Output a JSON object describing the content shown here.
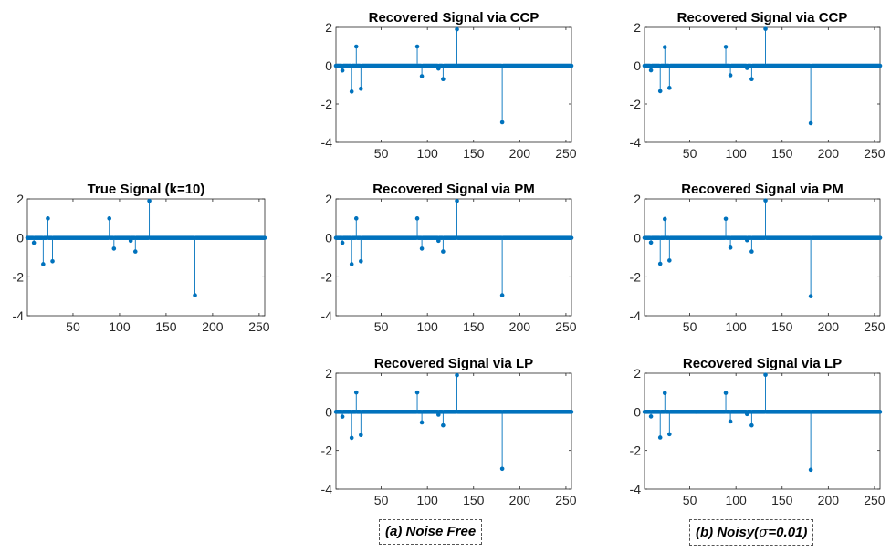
{
  "chart_data": [
    {
      "type": "stem",
      "title": "True Signal (k=10)",
      "xlim": [
        1,
        256
      ],
      "ylim": [
        -4,
        2
      ],
      "xticks": [
        50,
        100,
        150,
        200,
        250
      ],
      "yticks": [
        2,
        0,
        -2,
        -4
      ],
      "n_points": 256,
      "spikes": [
        {
          "x": 8,
          "y": -0.25
        },
        {
          "x": 18,
          "y": -1.35
        },
        {
          "x": 23,
          "y": 1.0
        },
        {
          "x": 28,
          "y": -1.2
        },
        {
          "x": 89,
          "y": 1.0
        },
        {
          "x": 94,
          "y": -0.55
        },
        {
          "x": 112,
          "y": -0.15
        },
        {
          "x": 117,
          "y": -0.7
        },
        {
          "x": 132,
          "y": 1.9
        },
        {
          "x": 181,
          "y": -2.95
        }
      ],
      "color": "#0072BD"
    },
    {
      "type": "stem",
      "title": "Recovered Signal via CCP",
      "xlim": [
        1,
        256
      ],
      "ylim": [
        -4,
        2
      ],
      "xticks": [
        50,
        100,
        150,
        200,
        250
      ],
      "yticks": [
        2,
        0,
        -2,
        -4
      ],
      "n_points": 256,
      "spikes": [
        {
          "x": 8,
          "y": -0.25
        },
        {
          "x": 18,
          "y": -1.35
        },
        {
          "x": 23,
          "y": 1.0
        },
        {
          "x": 28,
          "y": -1.2
        },
        {
          "x": 89,
          "y": 1.0
        },
        {
          "x": 94,
          "y": -0.55
        },
        {
          "x": 112,
          "y": -0.15
        },
        {
          "x": 117,
          "y": -0.7
        },
        {
          "x": 132,
          "y": 1.9
        },
        {
          "x": 181,
          "y": -2.95
        }
      ],
      "color": "#0072BD"
    },
    {
      "type": "stem",
      "title": "Recovered Signal via PM",
      "xlim": [
        1,
        256
      ],
      "ylim": [
        -4,
        2
      ],
      "xticks": [
        50,
        100,
        150,
        200,
        250
      ],
      "yticks": [
        2,
        0,
        -2,
        -4
      ],
      "n_points": 256,
      "spikes": [
        {
          "x": 8,
          "y": -0.25
        },
        {
          "x": 18,
          "y": -1.35
        },
        {
          "x": 23,
          "y": 1.0
        },
        {
          "x": 28,
          "y": -1.2
        },
        {
          "x": 89,
          "y": 1.0
        },
        {
          "x": 94,
          "y": -0.55
        },
        {
          "x": 112,
          "y": -0.15
        },
        {
          "x": 117,
          "y": -0.7
        },
        {
          "x": 132,
          "y": 1.9
        },
        {
          "x": 181,
          "y": -2.95
        }
      ],
      "color": "#0072BD"
    },
    {
      "type": "stem",
      "title": "Recovered Signal via LP",
      "xlim": [
        1,
        256
      ],
      "ylim": [
        -4,
        2
      ],
      "xticks": [
        50,
        100,
        150,
        200,
        250
      ],
      "yticks": [
        2,
        0,
        -2,
        -4
      ],
      "n_points": 256,
      "spikes": [
        {
          "x": 8,
          "y": -0.25
        },
        {
          "x": 18,
          "y": -1.35
        },
        {
          "x": 23,
          "y": 1.0
        },
        {
          "x": 28,
          "y": -1.2
        },
        {
          "x": 89,
          "y": 1.0
        },
        {
          "x": 94,
          "y": -0.55
        },
        {
          "x": 112,
          "y": -0.15
        },
        {
          "x": 117,
          "y": -0.7
        },
        {
          "x": 132,
          "y": 1.9
        },
        {
          "x": 181,
          "y": -2.95
        }
      ],
      "color": "#0072BD"
    },
    {
      "type": "stem",
      "title": "Recovered Signal via CCP",
      "xlim": [
        1,
        256
      ],
      "ylim": [
        -4,
        2
      ],
      "xticks": [
        50,
        100,
        150,
        200,
        250
      ],
      "yticks": [
        2,
        0,
        -2,
        -4
      ],
      "n_points": 256,
      "spikes": [
        {
          "x": 8,
          "y": -0.24
        },
        {
          "x": 18,
          "y": -1.33
        },
        {
          "x": 23,
          "y": 0.97
        },
        {
          "x": 28,
          "y": -1.16
        },
        {
          "x": 89,
          "y": 0.98
        },
        {
          "x": 94,
          "y": -0.5
        },
        {
          "x": 112,
          "y": -0.12
        },
        {
          "x": 117,
          "y": -0.7
        },
        {
          "x": 132,
          "y": 1.92
        },
        {
          "x": 181,
          "y": -3.0
        }
      ],
      "color": "#0072BD"
    },
    {
      "type": "stem",
      "title": "Recovered Signal via PM",
      "xlim": [
        1,
        256
      ],
      "ylim": [
        -4,
        2
      ],
      "xticks": [
        50,
        100,
        150,
        200,
        250
      ],
      "yticks": [
        2,
        0,
        -2,
        -4
      ],
      "n_points": 256,
      "spikes": [
        {
          "x": 8,
          "y": -0.24
        },
        {
          "x": 18,
          "y": -1.33
        },
        {
          "x": 23,
          "y": 0.97
        },
        {
          "x": 28,
          "y": -1.16
        },
        {
          "x": 89,
          "y": 0.98
        },
        {
          "x": 94,
          "y": -0.5
        },
        {
          "x": 112,
          "y": -0.12
        },
        {
          "x": 117,
          "y": -0.7
        },
        {
          "x": 132,
          "y": 1.92
        },
        {
          "x": 181,
          "y": -3.0
        }
      ],
      "color": "#0072BD"
    },
    {
      "type": "stem",
      "title": "Recovered Signal via LP",
      "xlim": [
        1,
        256
      ],
      "ylim": [
        -4,
        2
      ],
      "xticks": [
        50,
        100,
        150,
        200,
        250
      ],
      "yticks": [
        2,
        0,
        -2,
        -4
      ],
      "n_points": 256,
      "spikes": [
        {
          "x": 8,
          "y": -0.24
        },
        {
          "x": 18,
          "y": -1.33
        },
        {
          "x": 23,
          "y": 0.97
        },
        {
          "x": 28,
          "y": -1.16
        },
        {
          "x": 89,
          "y": 0.98
        },
        {
          "x": 94,
          "y": -0.5
        },
        {
          "x": 112,
          "y": -0.12
        },
        {
          "x": 117,
          "y": -0.7
        },
        {
          "x": 132,
          "y": 1.92
        },
        {
          "x": 181,
          "y": -3.0
        }
      ],
      "color": "#0072BD"
    }
  ],
  "captions": {
    "a": "(a) Noise Free",
    "b_prefix": "(b) Noisy(",
    "b_symbol": "σ",
    "b_suffix": "=0.01)"
  }
}
